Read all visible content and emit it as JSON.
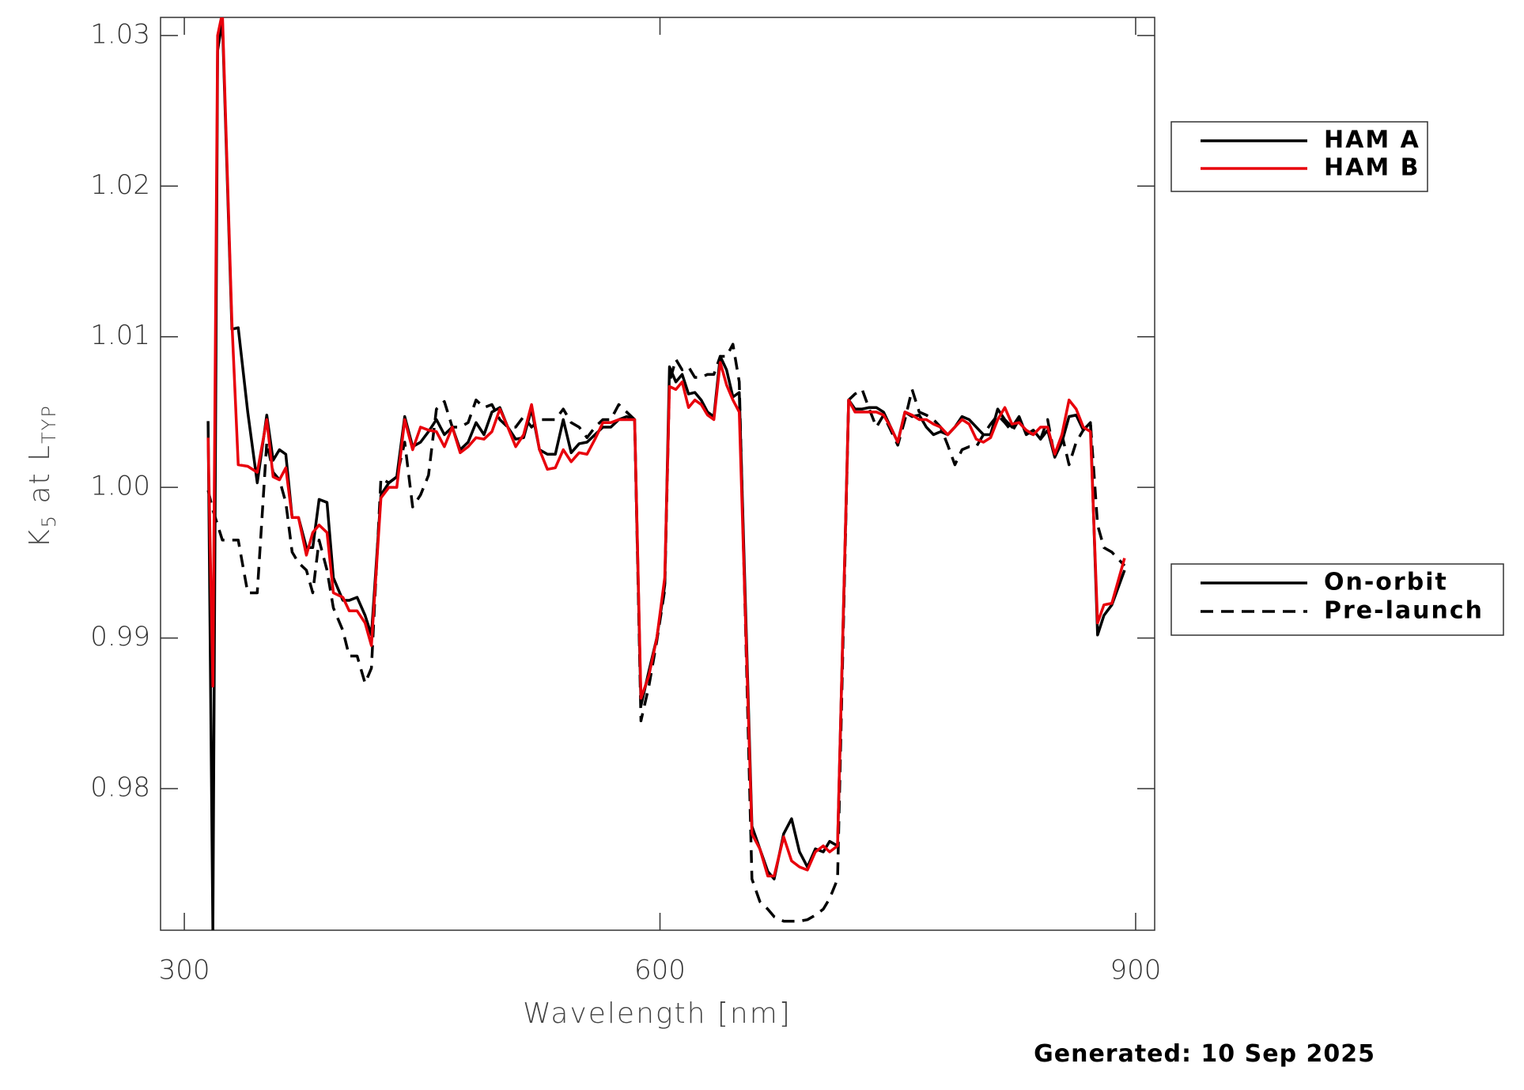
{
  "chart_data": {
    "type": "line",
    "xlabel": "Wavelength [nm]",
    "ylabel": [
      {
        "text": "K"
      },
      {
        "text": "5",
        "sub": true
      },
      {
        "text": " at L"
      },
      {
        "text": "TYP",
        "sub": true
      }
    ],
    "annotation": "Generated: 10 Sep 2025",
    "xlim": [
      285,
      912
    ],
    "xticks": [
      300,
      600,
      900
    ],
    "ylim": [
      0.9706,
      1.0312
    ],
    "yticks": [
      0.98,
      0.99,
      {
        "value": 1,
        "label": "1.00"
      },
      1.01,
      1.02,
      1.03
    ],
    "x": [
      315,
      318,
      321,
      324,
      330,
      334,
      340,
      346,
      352,
      356,
      360,
      364,
      368,
      372,
      377,
      381,
      385,
      390,
      394,
      400,
      404,
      409,
      414,
      418,
      424,
      429,
      434,
      439,
      444,
      449,
      454,
      459,
      464,
      469,
      474,
      479,
      484,
      489,
      494,
      499,
      504,
      509,
      514,
      519,
      524,
      529,
      534,
      539,
      544,
      549,
      554,
      559,
      564,
      569,
      574,
      579,
      584,
      588,
      593,
      598,
      603,
      606,
      610,
      614,
      618,
      622,
      626,
      630,
      634,
      638,
      642,
      646,
      650,
      658,
      663,
      668,
      672,
      678,
      683,
      688,
      693,
      698,
      703,
      707,
      712,
      719,
      723,
      727.5,
      732,
      736.5,
      741,
      745.5,
      750,
      754.5,
      759,
      763.5,
      768,
      772.5,
      777,
      781.5,
      786,
      790.5,
      795,
      799.5,
      804,
      808.5,
      813,
      817.5,
      822,
      826.5,
      831,
      835.5,
      840,
      844.5,
      849,
      853.5,
      858,
      862.5,
      867,
      871.5,
      876,
      880,
      885,
      893
    ],
    "series": [
      {
        "color": "#000000",
        "dash": true,
        "values": [
          0.9998,
          0.9985,
          0.9975,
          0.9965,
          0.9965,
          0.9965,
          0.993,
          0.993,
          1.003,
          1.001,
          1.0005,
          0.999,
          0.9957,
          0.995,
          0.9945,
          0.993,
          0.9965,
          0.9945,
          0.992,
          0.9905,
          0.9888,
          0.9888,
          0.987,
          0.988,
          1.0006,
          1.0003,
          1.0007,
          1.003,
          0.9987,
          0.9995,
          1.0008,
          1.0052,
          1.0057,
          1.004,
          1.004,
          1.0043,
          1.0058,
          1.0053,
          1.0055,
          1.0045,
          1.004,
          1.004,
          1.0047,
          1.004,
          1.0045,
          1.0045,
          1.0045,
          1.0052,
          1.0043,
          1.004,
          1.0033,
          1.004,
          1.0045,
          1.0045,
          1.0055,
          1.005,
          1.0045,
          0.9845,
          0.9868,
          0.9898,
          0.9932,
          1.007,
          1.0085,
          1.0078,
          1.008,
          1.0073,
          1.0073,
          1.0075,
          1.0075,
          1.0087,
          1.0087,
          1.0095,
          1.007,
          0.974,
          0.9725,
          0.972,
          0.9715,
          0.9712,
          0.9712,
          0.9712,
          0.9713,
          0.9716,
          0.972,
          0.9727,
          0.974,
          1.0058,
          1.0062,
          1.0065,
          1.0052,
          1.004,
          1.0048,
          1.0038,
          1.0028,
          1.0045,
          1.0065,
          1.005,
          1.0048,
          1.0045,
          1.004,
          1.0028,
          1.0015,
          1.0025,
          1.0027,
          1.0027,
          1.0035,
          1.0042,
          1.0048,
          1.0043,
          1.0037,
          1.0045,
          1.0037,
          1.0035,
          1.0032,
          1.0045,
          1.002,
          1.0035,
          1.0015,
          1.003,
          1.0038,
          1.0043,
          0.9975,
          0.996,
          0.9957,
          0.9948
        ]
      },
      {
        "color": "#000000",
        "dash": false,
        "values": [
          1.0044,
          0.9706,
          1.029,
          1.031,
          1.0105,
          1.0106,
          1.005,
          1.0003,
          1.0048,
          1.0018,
          1.0025,
          1.0022,
          0.998,
          0.998,
          0.996,
          0.996,
          0.9992,
          0.999,
          0.994,
          0.9925,
          0.9925,
          0.9927,
          0.9915,
          0.9902,
          0.9995,
          1.0003,
          1.0007,
          1.0047,
          1.0027,
          1.003,
          1.0037,
          1.0045,
          1.0035,
          1.004,
          1.0025,
          1.003,
          1.0043,
          1.0035,
          1.005,
          1.0053,
          1.004,
          1.0032,
          1.0033,
          1.0052,
          1.0025,
          1.0022,
          1.0022,
          1.0045,
          1.0023,
          1.0029,
          1.003,
          1.0035,
          1.004,
          1.004,
          1.0045,
          1.0047,
          1.0045,
          0.9855,
          0.9878,
          0.99,
          0.9935,
          1.008,
          1.007,
          1.0075,
          1.0062,
          1.0063,
          1.0058,
          1.005,
          1.0047,
          1.0087,
          1.0078,
          1.006,
          1.0063,
          0.9775,
          0.976,
          0.9745,
          0.974,
          0.977,
          0.978,
          0.9758,
          0.9748,
          0.976,
          0.9758,
          0.9765,
          0.9762,
          1.0058,
          1.0052,
          1.0052,
          1.0053,
          1.0053,
          1.005,
          1.004,
          1.003,
          1.005,
          1.0047,
          1.0048,
          1.004,
          1.0035,
          1.0037,
          1.0035,
          1.004,
          1.0047,
          1.0045,
          1.004,
          1.0035,
          1.0035,
          1.0052,
          1.0045,
          1.004,
          1.0047,
          1.0035,
          1.0038,
          1.0032,
          1.0038,
          1.002,
          1.003,
          1.0047,
          1.0048,
          1.0038,
          1.0043,
          0.9902,
          0.9915,
          0.9922,
          0.9945
        ]
      },
      {
        "color": "#e8000b",
        "dash": false,
        "values": [
          1.0033,
          0.9868,
          1.03,
          1.0315,
          1.011,
          1.0015,
          1.0014,
          1.001,
          1.0045,
          1.0007,
          1.0005,
          1.0013,
          0.998,
          0.998,
          0.9955,
          0.997,
          0.9975,
          0.997,
          0.993,
          0.9927,
          0.9918,
          0.9918,
          0.991,
          0.9895,
          0.9993,
          1,
          1,
          1.0045,
          1.0025,
          1.004,
          1.0038,
          1.0037,
          1.0027,
          1.004,
          1.0023,
          1.0027,
          1.0033,
          1.0032,
          1.0037,
          1.0052,
          1.004,
          1.0027,
          1.0035,
          1.0055,
          1.0025,
          1.0012,
          1.0013,
          1.0025,
          1.0017,
          1.0023,
          1.0022,
          1.0032,
          1.0043,
          1.0043,
          1.0045,
          1.0045,
          1.0045,
          0.986,
          0.9875,
          0.99,
          0.994,
          1.0067,
          1.0065,
          1.007,
          1.0053,
          1.0058,
          1.0055,
          1.0048,
          1.0045,
          1.0083,
          1.0068,
          1.0058,
          1.005,
          0.977,
          0.976,
          0.9742,
          0.9742,
          0.9768,
          0.9752,
          0.9748,
          0.9746,
          0.9758,
          0.9762,
          0.9758,
          0.9762,
          1.0058,
          1.005,
          1.005,
          1.005,
          1.005,
          1.0048,
          1.004,
          1.003,
          1.005,
          1.0048,
          1.0045,
          1.0045,
          1.0042,
          1.004,
          1.0035,
          1.004,
          1.0045,
          1.0042,
          1.0032,
          1.003,
          1.0033,
          1.0045,
          1.0053,
          1.0042,
          1.0043,
          1.0038,
          1.0035,
          1.004,
          1.004,
          1.0022,
          1.0035,
          1.0058,
          1.0052,
          1.004,
          1.0037,
          0.991,
          0.9922,
          0.9923,
          0.9953
        ]
      }
    ],
    "legends": [
      [
        {
          "label": "HAM A",
          "color": "#000000"
        },
        {
          "label": "HAM B",
          "color": "#e8000b"
        }
      ],
      [
        {
          "label": "On-orbit",
          "dash": false
        },
        {
          "label": "Pre-launch",
          "dash": true
        }
      ]
    ]
  }
}
